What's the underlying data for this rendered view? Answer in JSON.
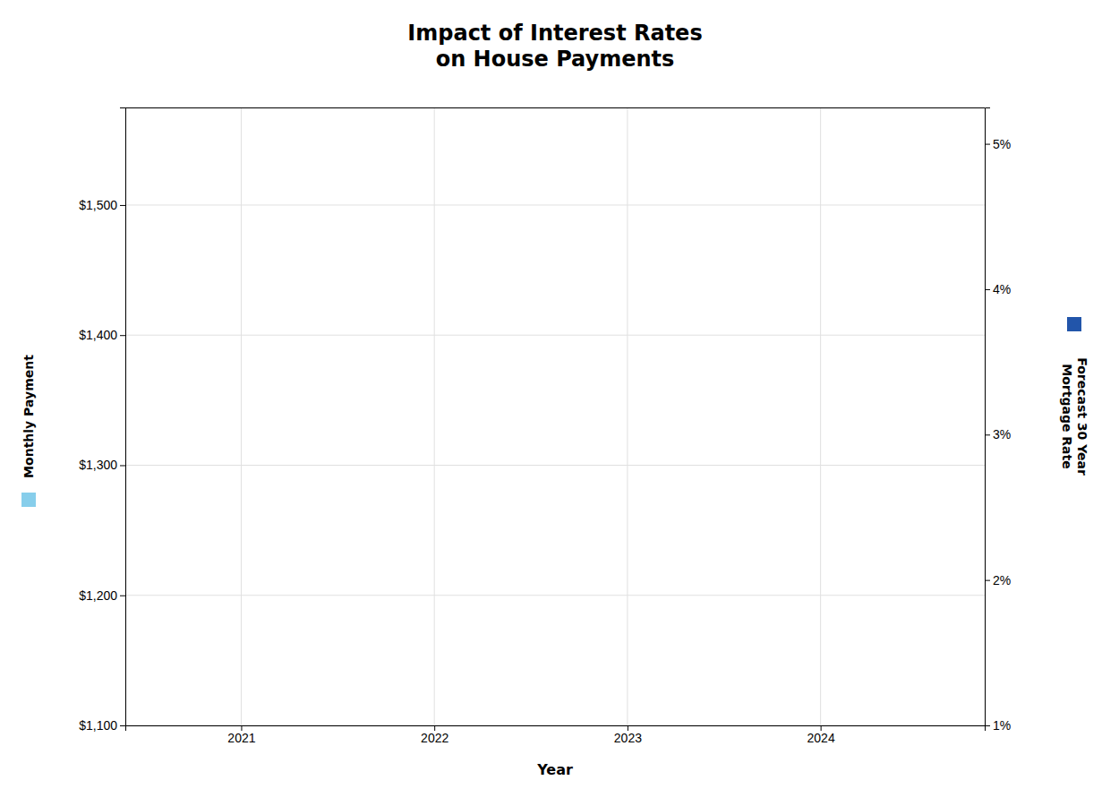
{
  "chart_data": {
    "type": "bar",
    "title": "Impact of Interest Rates\non House Payments",
    "x_label": "Year",
    "x": [],
    "series": [
      {
        "name": "Monthly Payment",
        "color": "#87CEEB",
        "values": []
      },
      {
        "name": "Forecast 30 Year\nMortgage Rate",
        "color": "#2255AA",
        "values": [],
        "axis": "y2"
      }
    ],
    "xlim": [
      2020.4,
      2024.85
    ],
    "xticks": [
      2021,
      2022,
      2023,
      2024
    ],
    "ylim": [
      1100,
      1575
    ],
    "yticks": [
      {
        "value": 1100,
        "label": "$1,100"
      },
      {
        "value": 1200,
        "label": "$1,200"
      },
      {
        "value": 1300,
        "label": "$1,300"
      },
      {
        "value": 1400,
        "label": "$1,400"
      },
      {
        "value": 1500,
        "label": "$1,500"
      }
    ],
    "y2lim": [
      1,
      5.25
    ],
    "y2ticks": [
      {
        "value": 1,
        "label": "1%"
      },
      {
        "value": 2,
        "label": "2%"
      },
      {
        "value": 3,
        "label": "3%"
      },
      {
        "value": 4,
        "label": "4%"
      },
      {
        "value": 5,
        "label": "5%"
      }
    ],
    "grid": true
  }
}
